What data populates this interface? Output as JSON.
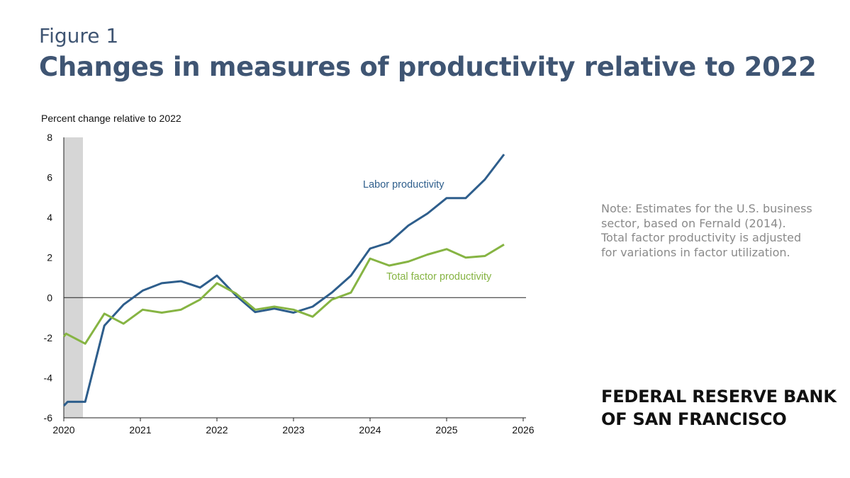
{
  "header": {
    "figure_label": "Figure 1",
    "title": "Changes in measures of productivity relative to 2022"
  },
  "note": "Note: Estimates for the U.S. business sector, based on Fernald (2014). Total factor productivity is adjusted for variations in factor utilization.",
  "brand": {
    "line1": "FEDERAL RESERVE BANK",
    "line2": "OF SAN FRANCISCO"
  },
  "chart_data": {
    "type": "line",
    "title": "",
    "ylabel": "Percent change relative to 2022",
    "xlabel": "",
    "xlim": [
      2020,
      2026
    ],
    "ylim": [
      -6,
      8
    ],
    "x_ticks": [
      "2020",
      "2021",
      "2022",
      "2023",
      "2024",
      "2025",
      "2026"
    ],
    "y_ticks": [
      "-6",
      "-4",
      "-2",
      "0",
      "2",
      "4",
      "6",
      "8"
    ],
    "recession_shading": [
      2020.0,
      2020.25
    ],
    "zero_line": true,
    "grid": false,
    "legend": "inline labels",
    "series": [
      {
        "name": "Labor productivity",
        "color": "#2e5e8c",
        "x": [
          2020.0,
          2020.05,
          2020.28,
          2020.53,
          2020.78,
          2021.03,
          2021.28,
          2021.53,
          2021.78,
          2022.0,
          2022.25,
          2022.5,
          2022.75,
          2023.0,
          2023.25,
          2023.5,
          2023.75,
          2024.0,
          2024.25,
          2024.5,
          2024.75,
          2025.0,
          2025.25,
          2025.5,
          2025.75
        ],
        "values": [
          -5.4,
          -5.2,
          -5.2,
          -1.4,
          -0.35,
          0.35,
          0.72,
          0.82,
          0.5,
          1.1,
          0.1,
          -0.72,
          -0.55,
          -0.75,
          -0.45,
          0.25,
          1.1,
          2.45,
          2.75,
          3.6,
          4.2,
          4.97,
          4.97,
          5.9,
          7.15
        ]
      },
      {
        "name": "Total factor productivity",
        "color": "#86b443",
        "x": [
          2020.0,
          2020.03,
          2020.28,
          2020.53,
          2020.78,
          2021.03,
          2021.28,
          2021.53,
          2021.78,
          2022.0,
          2022.25,
          2022.5,
          2022.75,
          2023.0,
          2023.25,
          2023.5,
          2023.75,
          2024.0,
          2024.25,
          2024.5,
          2024.75,
          2025.0,
          2025.25,
          2025.5,
          2025.75
        ],
        "values": [
          -1.95,
          -1.8,
          -2.3,
          -0.8,
          -1.3,
          -0.6,
          -0.75,
          -0.6,
          -0.1,
          0.72,
          0.2,
          -0.6,
          -0.45,
          -0.6,
          -0.95,
          -0.1,
          0.25,
          1.95,
          1.6,
          1.8,
          2.15,
          2.42,
          2.0,
          2.08,
          2.65
        ]
      }
    ]
  }
}
